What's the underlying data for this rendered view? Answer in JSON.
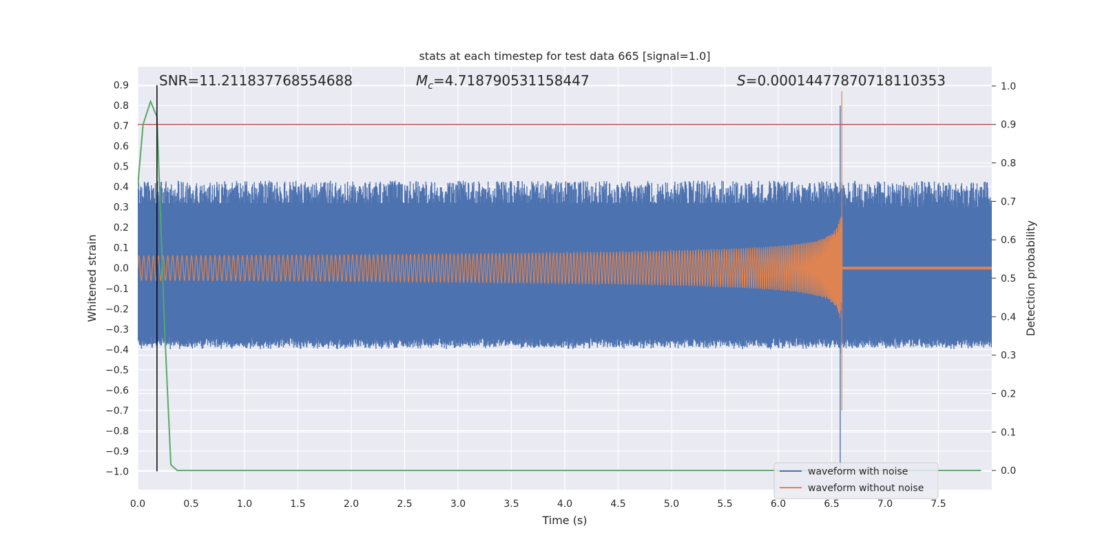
{
  "chart_data": {
    "type": "line",
    "title": "stats at each timestep for test data 665 [signal=1.0]",
    "xlabel": "Time (s)",
    "ylabel_left": "Whitened strain",
    "ylabel_right": "Detection probability",
    "xlim": [
      0.0,
      8.0
    ],
    "ylim_left": [
      -1.09,
      0.99
    ],
    "ylim_right": [
      -0.05,
      1.05
    ],
    "x_ticks": [
      0.0,
      0.5,
      1.0,
      1.5,
      2.0,
      2.5,
      3.0,
      3.5,
      4.0,
      4.5,
      5.0,
      5.5,
      6.0,
      6.5,
      7.0,
      7.5
    ],
    "x_tick_labels": [
      "0.0",
      "0.5",
      "1.0",
      "1.5",
      "2.0",
      "2.5",
      "3.0",
      "3.5",
      "4.0",
      "4.5",
      "5.0",
      "5.5",
      "6.0",
      "6.5",
      "7.0",
      "7.5"
    ],
    "y_left_ticks": [
      0.9,
      0.8,
      0.7,
      0.6,
      0.5,
      0.4,
      0.3,
      0.2,
      0.1,
      0.0,
      -0.1,
      -0.2,
      -0.3,
      -0.4,
      -0.5,
      -0.6,
      -0.7,
      -0.8,
      -0.9,
      -1.0
    ],
    "y_left_tick_labels": [
      "0.9",
      "0.8",
      "0.7",
      "0.6",
      "0.5",
      "0.4",
      "0.3",
      "0.2",
      "0.1",
      "0.0",
      "−0.1",
      "−0.2",
      "−0.3",
      "−0.4",
      "−0.5",
      "−0.6",
      "−0.7",
      "−0.8",
      "−0.9",
      "−1.0"
    ],
    "y_right_ticks": [
      1.0,
      0.9,
      0.8,
      0.7,
      0.6,
      0.5,
      0.4,
      0.3,
      0.2,
      0.1,
      0.0
    ],
    "y_right_tick_labels": [
      "1.0",
      "0.9",
      "0.8",
      "0.7",
      "0.6",
      "0.5",
      "0.4",
      "0.3",
      "0.2",
      "0.1",
      "0.0"
    ],
    "annotations": {
      "snr": "SNR=11.211837768554688",
      "mc_symbol": "M",
      "mc_subscript": "c",
      "mc_value": "=4.718790531158447",
      "s_symbol": "S",
      "s_value": "=0.00014477870718110353"
    },
    "series": [
      {
        "name": "waveform with noise",
        "color": "#4c72b0",
        "kind": "noisy_strain",
        "noise_band_left": [
          -0.38,
          0.38
        ],
        "merger_time": 6.58,
        "peak_max": 0.8,
        "peak_min": -1.0
      },
      {
        "name": "waveform without noise",
        "color": "#dd8452",
        "kind": "chirp",
        "start_amplitude": 0.06,
        "end_time": 6.6,
        "peak_max": 0.87,
        "peak_min": -0.7,
        "post_merger_value": 0.0
      },
      {
        "name": "detection probability",
        "color": "#55a868",
        "kind": "probability",
        "axis": "right",
        "x": [
          0.0,
          0.05,
          0.12,
          0.18,
          0.25,
          0.31,
          0.37,
          7.9
        ],
        "y": [
          0.74,
          0.9,
          0.96,
          0.92,
          0.38,
          0.015,
          0.0,
          0.0
        ]
      }
    ],
    "threshold_line": {
      "axis": "right",
      "value": 0.9,
      "color": "#c44e52"
    },
    "marker_line": {
      "x": 0.18,
      "axis": "left",
      "y_range": [
        -1.0,
        0.9
      ],
      "color": "#000000"
    },
    "legend": {
      "position": "bottom-right",
      "entries": [
        "waveform with noise",
        "waveform without noise"
      ]
    },
    "grid": true,
    "background_color": "#eaeaf2"
  }
}
